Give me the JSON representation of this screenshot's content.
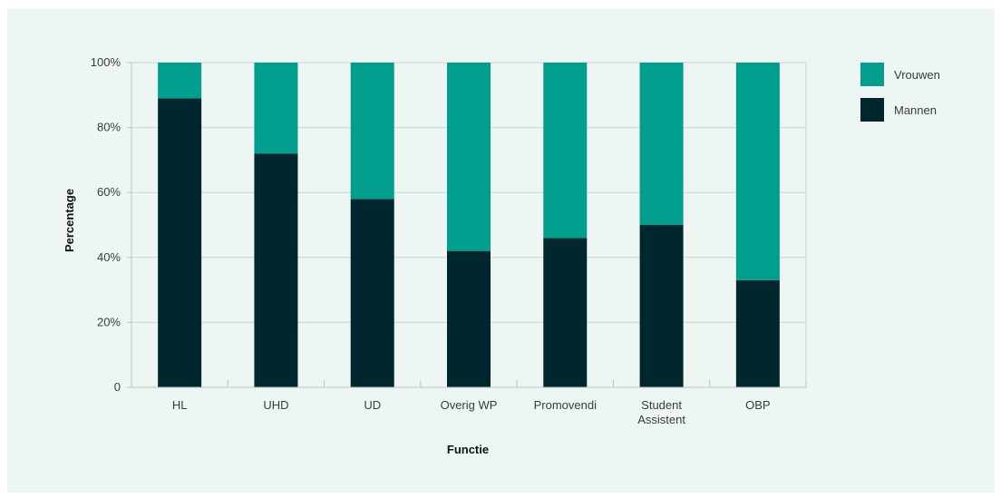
{
  "chart_data": {
    "type": "bar",
    "stacked": true,
    "xlabel": "Functie",
    "ylabel": "Percentage",
    "ylim": [
      0,
      100
    ],
    "yticks": [
      "0",
      "20%",
      "40%",
      "60%",
      "80%",
      "100%"
    ],
    "categories": [
      "HL",
      "UHD",
      "UD",
      "Overig WP",
      "Promovendi",
      "Student Assistent",
      "OBP"
    ],
    "category_lines": [
      [
        "HL"
      ],
      [
        "UHD"
      ],
      [
        "UD"
      ],
      [
        "Overig WP"
      ],
      [
        "Promovendi"
      ],
      [
        "Student",
        "Assistent"
      ],
      [
        "OBP"
      ]
    ],
    "series": [
      {
        "name": "Mannen",
        "color": "#00262e",
        "values": [
          89,
          72,
          58,
          42,
          46,
          50,
          33
        ]
      },
      {
        "name": "Vrouwen",
        "color": "#009e8c",
        "values": [
          11,
          28,
          42,
          58,
          54,
          50,
          67
        ]
      }
    ],
    "legend": [
      {
        "name": "Vrouwen",
        "color": "#009e8c"
      },
      {
        "name": "Mannen",
        "color": "#00262e"
      }
    ],
    "legend_position": "right",
    "grid": true
  }
}
